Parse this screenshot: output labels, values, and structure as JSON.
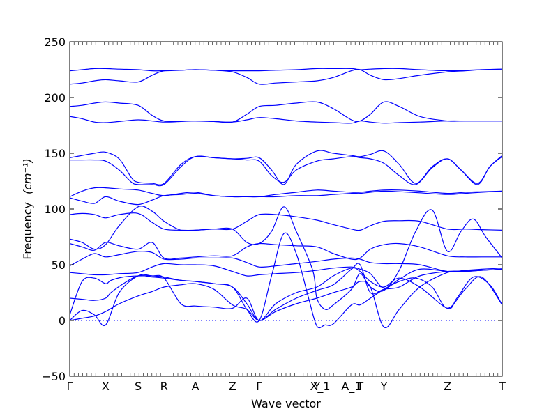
{
  "colors": {
    "band": "#0000ff",
    "zero_line": "#0000ff",
    "axes": "#000000"
  },
  "chart_data": {
    "type": "line",
    "xlabel": "Wave vector",
    "ylabel": "Frequency",
    "ylabel_unit": "(cm⁻¹)",
    "ylim": [
      -50,
      250
    ],
    "yticks": [
      -50,
      0,
      50,
      100,
      150,
      200,
      250
    ],
    "grid": false,
    "legend": "none",
    "zero_line": {
      "y": 0,
      "style": "dotted"
    },
    "x_range": [
      0,
      10.5
    ],
    "high_symmetry_points": [
      {
        "label": "Γ",
        "x": 0
      },
      {
        "label": "X",
        "x": 0.87
      },
      {
        "label": "S",
        "x": 1.66
      },
      {
        "label": "R",
        "x": 2.29
      },
      {
        "label": "A",
        "x": 3.05
      },
      {
        "label": "Z",
        "x": 3.95
      },
      {
        "label": "Γ",
        "x": 4.6
      },
      {
        "label": "Y",
        "x": 6.0
      },
      {
        "label": "X_1",
        "x": 6.08
      },
      {
        "label": "A_1",
        "x": 6.84
      },
      {
        "label": "T",
        "x": 7.05
      },
      {
        "label": "Y",
        "x": 7.63
      },
      {
        "label": "Z",
        "x": 9.17
      },
      {
        "label": "T",
        "x": 10.5
      }
    ],
    "series": [
      {
        "x": [
          0,
          0.3,
          0.6,
          0.87,
          1.2,
          1.66,
          2.0,
          2.29,
          2.7,
          3.05,
          3.5,
          3.95,
          4.3,
          4.6,
          5.0,
          5.5,
          6.0,
          6.4,
          6.84,
          7.05,
          7.3,
          7.63,
          8.0,
          8.5,
          9.17,
          9.6,
          10.0,
          10.5
        ],
        "y": [
          224,
          225,
          226,
          226,
          225.5,
          225,
          224,
          224,
          224.5,
          225,
          224.5,
          224,
          224,
          224,
          224.5,
          225,
          226,
          226,
          226,
          225,
          225.5,
          226,
          226,
          225,
          224,
          224.5,
          225,
          225.5
        ]
      },
      {
        "x": [
          0,
          0.3,
          0.6,
          0.87,
          1.2,
          1.66,
          2.0,
          2.29,
          2.7,
          3.05,
          3.5,
          3.95,
          4.3,
          4.6,
          5.0,
          5.5,
          6.0,
          6.4,
          6.84,
          7.05,
          7.3,
          7.63,
          8.0,
          8.5,
          9.17,
          9.6,
          10.0,
          10.5
        ],
        "y": [
          212,
          213,
          215,
          216,
          215,
          214,
          220,
          224,
          224.5,
          225,
          224.5,
          223,
          218,
          212,
          213,
          214,
          215,
          218,
          224,
          225,
          220,
          216,
          217,
          220,
          223,
          224,
          225,
          225.5
        ]
      },
      {
        "x": [
          0,
          0.3,
          0.6,
          0.87,
          1.2,
          1.66,
          2.0,
          2.29,
          2.7,
          3.05,
          3.5,
          3.95,
          4.3,
          4.6,
          5.0,
          5.5,
          6.0,
          6.4,
          6.84,
          7.05,
          7.3,
          7.63,
          8.0,
          8.5,
          9.17,
          9.6,
          10.0,
          10.5
        ],
        "y": [
          192,
          193,
          195,
          196,
          195,
          193,
          184,
          179,
          179,
          179,
          178.5,
          178,
          185,
          192,
          193,
          195,
          196,
          190,
          180,
          179,
          185,
          196,
          192,
          183,
          179,
          179,
          179,
          179
        ]
      },
      {
        "x": [
          0,
          0.3,
          0.6,
          0.87,
          1.2,
          1.66,
          2.0,
          2.29,
          2.7,
          3.05,
          3.5,
          3.95,
          4.3,
          4.6,
          5.0,
          5.5,
          6.0,
          6.4,
          6.84,
          7.05,
          7.3,
          7.63,
          8.0,
          8.5,
          9.17,
          9.6,
          10.0,
          10.5
        ],
        "y": [
          183,
          181,
          178,
          177.5,
          178.5,
          180,
          179,
          178,
          178.5,
          179,
          178.5,
          178,
          180,
          182,
          181,
          179,
          178,
          177.5,
          177,
          179,
          178,
          177,
          177.5,
          178,
          179,
          179,
          179,
          179
        ]
      },
      {
        "x": [
          0,
          0.3,
          0.6,
          0.87,
          1.2,
          1.5,
          1.66,
          2.0,
          2.29,
          2.7,
          3.05,
          3.5,
          3.95,
          4.3,
          4.6,
          4.9,
          5.2,
          5.5,
          6.0,
          6.4,
          6.84,
          7.05,
          7.3,
          7.63,
          8.0,
          8.4,
          8.8,
          9.17,
          9.5,
          9.9,
          10.2,
          10.5
        ],
        "y": [
          146,
          148,
          150,
          151,
          145,
          128,
          124,
          123,
          123,
          140,
          147,
          146,
          145,
          145.5,
          146,
          135,
          122,
          140,
          152,
          150,
          148,
          147,
          149,
          152,
          140,
          123,
          138,
          145,
          135,
          123,
          138,
          148
        ]
      },
      {
        "x": [
          0,
          0.3,
          0.6,
          0.87,
          1.2,
          1.5,
          1.66,
          2.0,
          2.29,
          2.7,
          3.05,
          3.5,
          3.95,
          4.3,
          4.6,
          4.9,
          5.2,
          5.5,
          6.0,
          6.4,
          6.84,
          7.05,
          7.3,
          7.63,
          8.0,
          8.4,
          8.8,
          9.17,
          9.5,
          9.9,
          10.2,
          10.5
        ],
        "y": [
          144,
          144,
          144,
          143,
          135,
          124,
          122,
          122,
          122,
          138,
          147,
          146,
          145,
          144,
          143,
          130,
          124,
          135,
          143,
          145,
          147,
          146,
          145,
          141,
          130,
          122,
          137,
          145,
          135,
          122,
          138,
          147
        ]
      },
      {
        "x": [
          0,
          0.3,
          0.6,
          0.87,
          1.2,
          1.66,
          2.0,
          2.29,
          2.7,
          3.05,
          3.5,
          3.95,
          4.3,
          4.6,
          5.0,
          5.5,
          6.0,
          6.4,
          6.84,
          7.05,
          7.3,
          7.63,
          8.0,
          8.5,
          9.17,
          9.6,
          10.0,
          10.5
        ],
        "y": [
          111,
          116,
          119,
          119,
          118,
          117,
          114,
          112,
          114,
          115,
          112,
          111,
          111,
          111,
          113,
          115,
          117,
          116,
          115,
          115,
          116,
          117,
          117,
          116,
          114,
          115,
          115.5,
          116
        ]
      },
      {
        "x": [
          0,
          0.3,
          0.6,
          0.87,
          1.2,
          1.66,
          2.0,
          2.29,
          2.7,
          3.05,
          3.5,
          3.95,
          4.3,
          4.6,
          5.0,
          5.5,
          6.0,
          6.4,
          6.84,
          7.05,
          7.3,
          7.63,
          8.0,
          8.5,
          9.17,
          9.6,
          10.0,
          10.5
        ],
        "y": [
          110,
          107,
          105,
          111,
          107,
          104,
          108,
          112,
          113,
          114,
          112,
          111,
          111,
          111,
          111,
          112,
          112,
          113,
          114,
          114,
          115,
          116,
          115.5,
          114.5,
          113,
          114,
          115,
          116
        ]
      },
      {
        "x": [
          0,
          0.3,
          0.6,
          0.87,
          1.2,
          1.66,
          2.0,
          2.29,
          2.7,
          3.05,
          3.5,
          3.95,
          4.3,
          4.6,
          5.0,
          5.5,
          6.0,
          6.4,
          6.84,
          7.05,
          7.3,
          7.63,
          8.0,
          8.5,
          9.17,
          9.6,
          10.0,
          10.5
        ],
        "y": [
          95,
          96,
          95,
          92,
          95,
          96,
          88,
          82,
          81,
          81,
          82,
          82,
          89,
          95,
          95,
          93,
          90,
          86,
          82,
          81,
          85,
          89,
          89.5,
          89,
          82,
          82,
          81.5,
          81
        ]
      },
      {
        "x": [
          0,
          0.3,
          0.6,
          0.87,
          1.2,
          1.66,
          2.0,
          2.29,
          2.7,
          3.05,
          3.5,
          3.95,
          4.3,
          4.6,
          4.9,
          5.2,
          5.5,
          5.9,
          6.0,
          6.2,
          6.4,
          6.84,
          7.05,
          7.3,
          7.63,
          8.0,
          8.4,
          8.8,
          9.17,
          9.5,
          9.8,
          10.1,
          10.5
        ],
        "y": [
          73,
          70,
          64,
          68,
          85,
          102,
          98,
          89,
          81,
          81,
          82,
          82,
          70,
          69,
          80,
          102,
          80,
          45,
          20,
          10,
          14,
          28,
          42,
          30,
          27,
          45,
          80,
          99,
          62,
          80,
          91,
          75,
          56
        ]
      },
      {
        "x": [
          0,
          0.3,
          0.6,
          0.87,
          1.2,
          1.66,
          2.0,
          2.29,
          2.7,
          3.05,
          3.5,
          3.95,
          4.3,
          4.6,
          5.0,
          5.5,
          6.0,
          6.4,
          6.84,
          7.05,
          7.3,
          7.63,
          8.0,
          8.5,
          9.17,
          9.6,
          10.0,
          10.5
        ],
        "y": [
          69,
          66,
          63,
          70,
          67,
          64,
          70,
          56,
          56,
          57,
          58,
          58,
          66,
          69,
          68,
          67,
          66,
          60,
          55,
          56,
          64,
          68,
          69,
          66,
          58,
          57,
          57,
          57
        ]
      },
      {
        "x": [
          0,
          0.3,
          0.6,
          0.87,
          1.2,
          1.66,
          2.0,
          2.29,
          2.7,
          3.05,
          3.5,
          3.95,
          4.3,
          4.6,
          5.0,
          5.5,
          6.0,
          6.4,
          6.84,
          7.05,
          7.3,
          7.63,
          8.0,
          8.5,
          9.17,
          9.6,
          10.0,
          10.5
        ],
        "y": [
          49,
          55,
          60,
          57,
          59,
          62,
          61,
          55,
          55,
          56,
          56,
          56,
          52,
          48,
          49,
          51,
          53,
          55,
          56,
          55,
          52,
          51,
          51,
          50,
          44,
          45,
          46,
          47
        ]
      },
      {
        "x": [
          0,
          0.3,
          0.6,
          0.87,
          1.2,
          1.66,
          2.0,
          2.29,
          2.7,
          3.05,
          3.5,
          3.95,
          4.3,
          4.6,
          5.0,
          5.5,
          6.0,
          6.4,
          6.84,
          7.05,
          7.3,
          7.63,
          8.0,
          8.5,
          9.17,
          9.6,
          10.0,
          10.5
        ],
        "y": [
          43,
          42,
          41,
          41,
          42,
          43,
          48,
          51,
          50,
          50,
          49,
          44,
          40,
          41,
          42,
          43,
          45,
          47,
          48,
          46,
          42,
          29,
          37,
          46,
          44,
          44.5,
          45,
          46
        ]
      },
      {
        "x": [
          0,
          0.3,
          0.6,
          0.87,
          1.0,
          1.3,
          1.66,
          2.0,
          2.29,
          2.7,
          3.05,
          3.5,
          3.95,
          4.3,
          4.6,
          5.0,
          5.5,
          6.0,
          6.4,
          6.84,
          7.05,
          7.3,
          7.63,
          8.0,
          8.5,
          9.17,
          9.4,
          9.8,
          10.2,
          10.5
        ],
        "y": [
          5,
          35,
          38,
          33,
          36,
          39,
          40,
          40,
          38,
          15,
          13,
          12,
          11,
          20,
          0,
          15,
          25,
          30,
          40,
          47,
          44,
          35,
          30,
          38,
          30,
          11,
          20,
          39,
          32,
          14
        ]
      },
      {
        "x": [
          0,
          0.3,
          0.6,
          0.87,
          1.0,
          1.3,
          1.66,
          2.0,
          2.29,
          2.7,
          3.05,
          3.5,
          3.95,
          4.3,
          4.6,
          4.9,
          5.2,
          5.5,
          5.8,
          6.0,
          6.2,
          6.4,
          6.84,
          7.05,
          7.3,
          7.63,
          8.0,
          8.4,
          8.8,
          9.17,
          9.6,
          10.0,
          10.5
        ],
        "y": [
          20,
          19,
          18,
          20,
          25,
          33,
          40,
          39,
          38,
          36,
          35,
          33,
          30,
          10,
          0,
          40,
          78,
          60,
          20,
          -5,
          -4,
          -3,
          14,
          14,
          20,
          28,
          35,
          38,
          30,
          11,
          28,
          39,
          14
        ]
      },
      {
        "x": [
          0,
          0.3,
          0.6,
          0.87,
          1.2,
          1.66,
          2.0,
          2.29,
          2.7,
          3.05,
          3.5,
          3.95,
          4.3,
          4.6,
          5.0,
          5.5,
          6.0,
          6.4,
          6.84,
          7.05,
          7.3,
          7.63,
          8.0,
          8.5,
          9.17,
          9.6,
          10.0,
          10.5
        ],
        "y": [
          0,
          9,
          5,
          -4,
          25,
          40,
          40,
          39,
          36,
          35,
          33,
          30,
          15,
          0,
          10,
          20,
          27,
          32,
          46,
          50,
          25,
          28,
          30,
          40,
          44,
          44,
          45,
          46
        ]
      },
      {
        "x": [
          0,
          0.3,
          0.6,
          0.87,
          1.2,
          1.66,
          2.0,
          2.29,
          2.7,
          3.05,
          3.5,
          3.95,
          4.3,
          4.6,
          5.0,
          5.5,
          6.0,
          6.4,
          6.84,
          7.05,
          7.3,
          7.63,
          8.0,
          8.5,
          9.17,
          9.6,
          10.0,
          10.5
        ],
        "y": [
          0,
          2,
          4,
          8,
          15,
          22,
          26,
          30,
          32,
          33,
          28,
          14,
          10,
          0,
          8,
          15,
          20,
          25,
          30,
          35,
          30,
          -6,
          10,
          30,
          43,
          44,
          45,
          46
        ]
      }
    ]
  }
}
